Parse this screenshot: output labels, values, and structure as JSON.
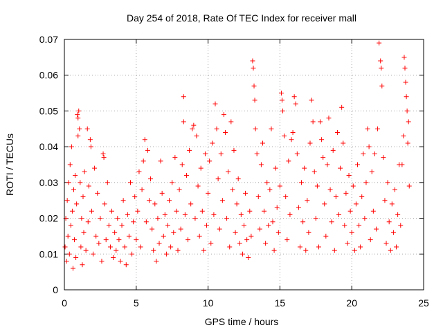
{
  "chart_data": {
    "type": "scatter",
    "title": "Day 254 of 2018, Rate Of TEC Index for receiver mall",
    "xlabel": "GPS time / hours",
    "ylabel": "ROTI / TECUs",
    "xlim": [
      0,
      25
    ],
    "ylim": [
      0,
      0.07
    ],
    "x_ticks": [
      0,
      5,
      10,
      15,
      20,
      25
    ],
    "x_tick_labels": [
      "0",
      "5",
      "10",
      "15",
      "20",
      "25"
    ],
    "y_ticks": [
      0,
      0.01,
      0.02,
      0.03,
      0.04,
      0.05,
      0.06,
      0.07
    ],
    "y_tick_labels": [
      "0",
      "0.01",
      "0.02",
      "0.03",
      "0.04",
      "0.05",
      "0.06",
      "0.07"
    ],
    "grid": true,
    "marker": "+",
    "series": [
      {
        "name": "ROTI",
        "color": "#ff0000",
        "points": [
          [
            0.05,
            0.012
          ],
          [
            0.1,
            0.02
          ],
          [
            0.15,
            0.008
          ],
          [
            0.2,
            0.025
          ],
          [
            0.25,
            0.015
          ],
          [
            0.3,
            0.03
          ],
          [
            0.35,
            0.01
          ],
          [
            0.4,
            0.035
          ],
          [
            0.45,
            0.018
          ],
          [
            0.5,
            0.04
          ],
          [
            0.55,
            0.022
          ],
          [
            0.6,
            0.006
          ],
          [
            0.65,
            0.028
          ],
          [
            0.7,
            0.014
          ],
          [
            0.75,
            0.032
          ],
          [
            0.8,
            0.009
          ],
          [
            0.85,
            0.024
          ],
          [
            0.9,
            0.049
          ],
          [
            0.95,
            0.048
          ],
          [
            1.0,
            0.05
          ],
          [
            1.05,
            0.045
          ],
          [
            0.95,
            0.043
          ],
          [
            1.1,
            0.03
          ],
          [
            1.15,
            0.012
          ],
          [
            1.2,
            0.02
          ],
          [
            1.25,
            0.007
          ],
          [
            1.3,
            0.026
          ],
          [
            1.35,
            0.016
          ],
          [
            1.4,
            0.033
          ],
          [
            1.5,
            0.011
          ],
          [
            1.6,
            0.045
          ],
          [
            1.65,
            0.019
          ],
          [
            1.7,
            0.029
          ],
          [
            1.8,
            0.042
          ],
          [
            1.85,
            0.04
          ],
          [
            1.9,
            0.022
          ],
          [
            2.0,
            0.01
          ],
          [
            2.1,
            0.034
          ],
          [
            2.2,
            0.015
          ],
          [
            2.3,
            0.027
          ],
          [
            2.4,
            0.013
          ],
          [
            2.5,
            0.02
          ],
          [
            2.6,
            0.008
          ],
          [
            2.7,
            0.038
          ],
          [
            2.75,
            0.037
          ],
          [
            2.8,
            0.024
          ],
          [
            2.9,
            0.014
          ],
          [
            3.0,
            0.03
          ],
          [
            3.1,
            0.018
          ],
          [
            3.2,
            0.012
          ],
          [
            3.3,
            0.022
          ],
          [
            3.4,
            0.009
          ],
          [
            3.5,
            0.016
          ],
          [
            3.6,
            0.011
          ],
          [
            3.7,
            0.02
          ],
          [
            3.8,
            0.014
          ],
          [
            3.9,
            0.008
          ],
          [
            4.0,
            0.018
          ],
          [
            4.1,
            0.025
          ],
          [
            4.2,
            0.012
          ],
          [
            4.3,
            0.007
          ],
          [
            4.4,
            0.021
          ],
          [
            4.5,
            0.015
          ],
          [
            4.6,
            0.03
          ],
          [
            4.7,
            0.01
          ],
          [
            4.8,
            0.019
          ],
          [
            4.9,
            0.026
          ],
          [
            5.0,
            0.014
          ],
          [
            5.1,
            0.022
          ],
          [
            5.2,
            0.033
          ],
          [
            5.3,
            0.012
          ],
          [
            5.4,
            0.028
          ],
          [
            5.5,
            0.036
          ],
          [
            5.6,
            0.042
          ],
          [
            5.7,
            0.019
          ],
          [
            5.8,
            0.039
          ],
          [
            5.9,
            0.025
          ],
          [
            6.0,
            0.031
          ],
          [
            6.1,
            0.017
          ],
          [
            6.2,
            0.011
          ],
          [
            6.3,
            0.024
          ],
          [
            6.4,
            0.008
          ],
          [
            6.5,
            0.02
          ],
          [
            6.6,
            0.013
          ],
          [
            6.7,
            0.036
          ],
          [
            6.8,
            0.027
          ],
          [
            6.9,
            0.015
          ],
          [
            7.0,
            0.021
          ],
          [
            7.1,
            0.01
          ],
          [
            7.2,
            0.018
          ],
          [
            7.3,
            0.025
          ],
          [
            7.4,
            0.012
          ],
          [
            7.5,
            0.03
          ],
          [
            7.6,
            0.016
          ],
          [
            7.7,
            0.037
          ],
          [
            7.8,
            0.022
          ],
          [
            7.9,
            0.011
          ],
          [
            8.0,
            0.028
          ],
          [
            8.1,
            0.017
          ],
          [
            8.2,
            0.035
          ],
          [
            8.3,
            0.054
          ],
          [
            8.3,
            0.047
          ],
          [
            8.4,
            0.021
          ],
          [
            8.5,
            0.032
          ],
          [
            8.6,
            0.014
          ],
          [
            8.7,
            0.039
          ],
          [
            8.8,
            0.024
          ],
          [
            8.9,
            0.045
          ],
          [
            9.0,
            0.046
          ],
          [
            9.1,
            0.02
          ],
          [
            9.2,
            0.043
          ],
          [
            9.3,
            0.029
          ],
          [
            9.4,
            0.015
          ],
          [
            9.5,
            0.034
          ],
          [
            9.6,
            0.022
          ],
          [
            9.7,
            0.011
          ],
          [
            9.8,
            0.038
          ],
          [
            9.9,
            0.018
          ],
          [
            10.0,
            0.027
          ],
          [
            10.1,
            0.036
          ],
          [
            10.2,
            0.013
          ],
          [
            10.3,
            0.041
          ],
          [
            10.4,
            0.021
          ],
          [
            10.5,
            0.052
          ],
          [
            10.6,
            0.045
          ],
          [
            10.7,
            0.031
          ],
          [
            10.8,
            0.017
          ],
          [
            10.9,
            0.038
          ],
          [
            11.0,
            0.025
          ],
          [
            11.1,
            0.049
          ],
          [
            11.2,
            0.044
          ],
          [
            11.3,
            0.02
          ],
          [
            11.4,
            0.033
          ],
          [
            11.5,
            0.012
          ],
          [
            11.6,
            0.047
          ],
          [
            11.7,
            0.028
          ],
          [
            11.8,
            0.039
          ],
          [
            11.9,
            0.016
          ],
          [
            12.0,
            0.024
          ],
          [
            12.1,
            0.031
          ],
          [
            12.2,
            0.013
          ],
          [
            12.3,
            0.021
          ],
          [
            12.4,
            0.01
          ],
          [
            12.5,
            0.018
          ],
          [
            12.6,
            0.027
          ],
          [
            12.7,
            0.014
          ],
          [
            12.8,
            0.009
          ],
          [
            12.9,
            0.022
          ],
          [
            13.0,
            0.015
          ],
          [
            13.1,
            0.064
          ],
          [
            13.15,
            0.062
          ],
          [
            13.2,
            0.057
          ],
          [
            13.25,
            0.053
          ],
          [
            13.3,
            0.045
          ],
          [
            13.4,
            0.038
          ],
          [
            13.5,
            0.026
          ],
          [
            13.6,
            0.017
          ],
          [
            13.7,
            0.035
          ],
          [
            13.8,
            0.041
          ],
          [
            13.9,
            0.022
          ],
          [
            14.0,
            0.013
          ],
          [
            14.1,
            0.03
          ],
          [
            14.2,
            0.018
          ],
          [
            14.3,
            0.028
          ],
          [
            14.4,
            0.045
          ],
          [
            14.5,
            0.019
          ],
          [
            14.6,
            0.011
          ],
          [
            14.7,
            0.034
          ],
          [
            14.8,
            0.023
          ],
          [
            14.9,
            0.016
          ],
          [
            15.0,
            0.029
          ],
          [
            15.1,
            0.055
          ],
          [
            15.15,
            0.053
          ],
          [
            15.2,
            0.05
          ],
          [
            15.3,
            0.043
          ],
          [
            15.4,
            0.026
          ],
          [
            15.5,
            0.014
          ],
          [
            15.6,
            0.036
          ],
          [
            15.7,
            0.021
          ],
          [
            15.8,
            0.042
          ],
          [
            15.9,
            0.044
          ],
          [
            16.0,
            0.054
          ],
          [
            16.1,
            0.052
          ],
          [
            16.2,
            0.038
          ],
          [
            16.3,
            0.023
          ],
          [
            16.4,
            0.012
          ],
          [
            16.5,
            0.03
          ],
          [
            16.6,
            0.019
          ],
          [
            16.7,
            0.034
          ],
          [
            16.8,
            0.011
          ],
          [
            16.9,
            0.025
          ],
          [
            17.0,
            0.016
          ],
          [
            17.1,
            0.041
          ],
          [
            17.2,
            0.053
          ],
          [
            17.3,
            0.047
          ],
          [
            17.4,
            0.033
          ],
          [
            17.5,
            0.02
          ],
          [
            17.6,
            0.029
          ],
          [
            17.7,
            0.012
          ],
          [
            17.8,
            0.047
          ],
          [
            17.9,
            0.042
          ],
          [
            18.0,
            0.037
          ],
          [
            18.1,
            0.024
          ],
          [
            18.2,
            0.015
          ],
          [
            18.3,
            0.035
          ],
          [
            18.4,
            0.048
          ],
          [
            18.5,
            0.028
          ],
          [
            18.6,
            0.019
          ],
          [
            18.7,
            0.039
          ],
          [
            18.8,
            0.011
          ],
          [
            18.9,
            0.026
          ],
          [
            19.0,
            0.044
          ],
          [
            19.1,
            0.021
          ],
          [
            19.2,
            0.034
          ],
          [
            19.3,
            0.051
          ],
          [
            19.4,
            0.041
          ],
          [
            19.5,
            0.018
          ],
          [
            19.6,
            0.027
          ],
          [
            19.7,
            0.013
          ],
          [
            19.8,
            0.032
          ],
          [
            19.9,
            0.022
          ],
          [
            20.0,
            0.016
          ],
          [
            20.1,
            0.029
          ],
          [
            20.2,
            0.011
          ],
          [
            20.3,
            0.024
          ],
          [
            20.4,
            0.035
          ],
          [
            20.5,
            0.018
          ],
          [
            20.6,
            0.012
          ],
          [
            20.7,
            0.026
          ],
          [
            20.8,
            0.038
          ],
          [
            20.9,
            0.02
          ],
          [
            21.0,
            0.03
          ],
          [
            21.1,
            0.045
          ],
          [
            21.2,
            0.04
          ],
          [
            21.3,
            0.014
          ],
          [
            21.4,
            0.033
          ],
          [
            21.5,
            0.022
          ],
          [
            21.6,
            0.038
          ],
          [
            21.7,
            0.017
          ],
          [
            21.8,
            0.045
          ],
          [
            21.9,
            0.069
          ],
          [
            22.0,
            0.064
          ],
          [
            22.05,
            0.062
          ],
          [
            22.1,
            0.057
          ],
          [
            22.2,
            0.037
          ],
          [
            22.3,
            0.025
          ],
          [
            22.4,
            0.013
          ],
          [
            22.5,
            0.03
          ],
          [
            22.6,
            0.019
          ],
          [
            22.7,
            0.011
          ],
          [
            22.8,
            0.024
          ],
          [
            22.9,
            0.016
          ],
          [
            23.0,
            0.028
          ],
          [
            23.1,
            0.012
          ],
          [
            23.2,
            0.021
          ],
          [
            23.3,
            0.035
          ],
          [
            23.4,
            0.018
          ],
          [
            23.5,
            0.035
          ],
          [
            23.6,
            0.043
          ],
          [
            23.65,
            0.065
          ],
          [
            23.7,
            0.062
          ],
          [
            23.75,
            0.058
          ],
          [
            23.8,
            0.054
          ],
          [
            23.85,
            0.05
          ],
          [
            23.9,
            0.041
          ],
          [
            23.95,
            0.047
          ],
          [
            24.0,
            0.029
          ]
        ]
      }
    ]
  }
}
